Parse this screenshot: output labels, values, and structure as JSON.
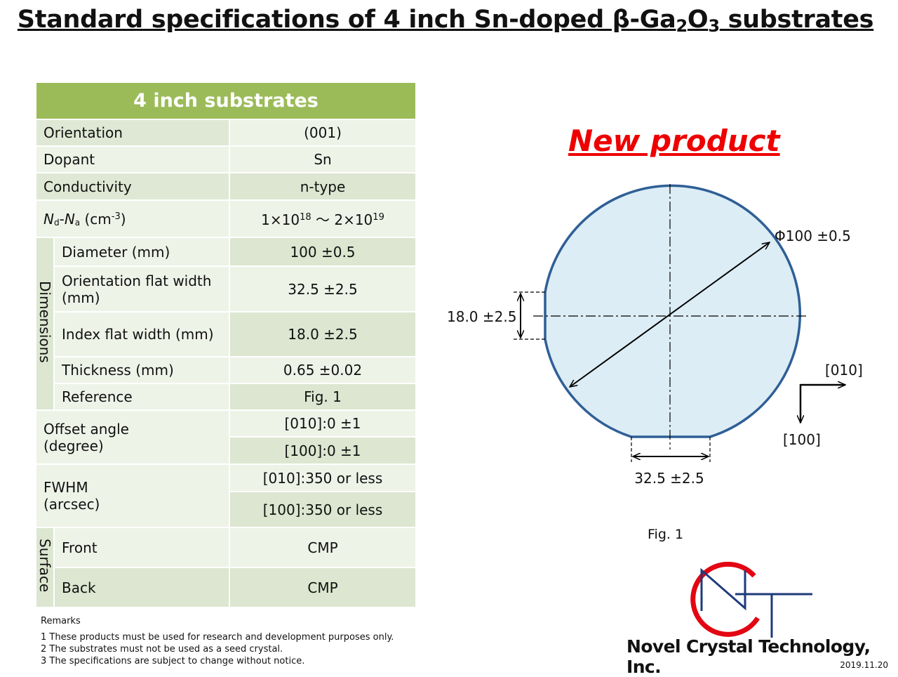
{
  "title": {
    "parts": [
      "Standard specifications of 4 inch Sn-doped β-Ga",
      "2",
      "O",
      "3",
      " substrates"
    ]
  },
  "table": {
    "header": "4 inch substrates",
    "rows": [
      {
        "label": "Orientation",
        "value": "(001)"
      },
      {
        "label": "Dopant",
        "value": "Sn"
      },
      {
        "label": "Conductivity",
        "value": "n-type"
      },
      {
        "label_parts": [
          "N",
          "d",
          "-",
          "N",
          "a",
          " (cm",
          "-3",
          ")"
        ],
        "value_parts": [
          "1×10",
          "18",
          " ～ 2×10",
          "19"
        ]
      }
    ],
    "dimensions": {
      "group": "Dimensions",
      "rows": [
        {
          "label": "Diameter (mm)",
          "value": "100 ±0.5"
        },
        {
          "label": "Orientation flat width (mm)",
          "value": "32.5 ±2.5"
        },
        {
          "label": "Index flat width (mm)",
          "value": "18.0 ±2.5"
        },
        {
          "label": "Thickness (mm)",
          "value": "0.65 ±0.02"
        },
        {
          "label": "Reference",
          "value": "Fig. 1"
        }
      ]
    },
    "offset_angle": {
      "label": "Offset angle (degree)",
      "values": [
        "[010]:0 ±1",
        "[100]:0 ±1"
      ]
    },
    "fwhm": {
      "label": "FWHM (arcsec)",
      "values": [
        "[010]:350 or less",
        "[100]:350 or less"
      ]
    },
    "surface": {
      "group": "Surface",
      "rows": [
        {
          "label": "Front",
          "value": "CMP"
        },
        {
          "label": "Back",
          "value": "CMP"
        }
      ]
    }
  },
  "remarks": {
    "title": "Remarks",
    "items": [
      "1 These products must be used for research and development purposes only.",
      "2 The substrates must not be used as a seed crystal.",
      "3 The specifications are subject to change without notice."
    ]
  },
  "figure": {
    "new_product": "New product",
    "diameter": "Φ100 ±0.5",
    "index_flat": "18.0 ±2.5",
    "orientation_flat": "32.5 ±2.5",
    "dir_x": "[010]",
    "dir_y": "[100]",
    "caption": "Fig. 1"
  },
  "footer": {
    "company": "Novel Crystal Technology, Inc.",
    "date": "2019.11.20"
  }
}
